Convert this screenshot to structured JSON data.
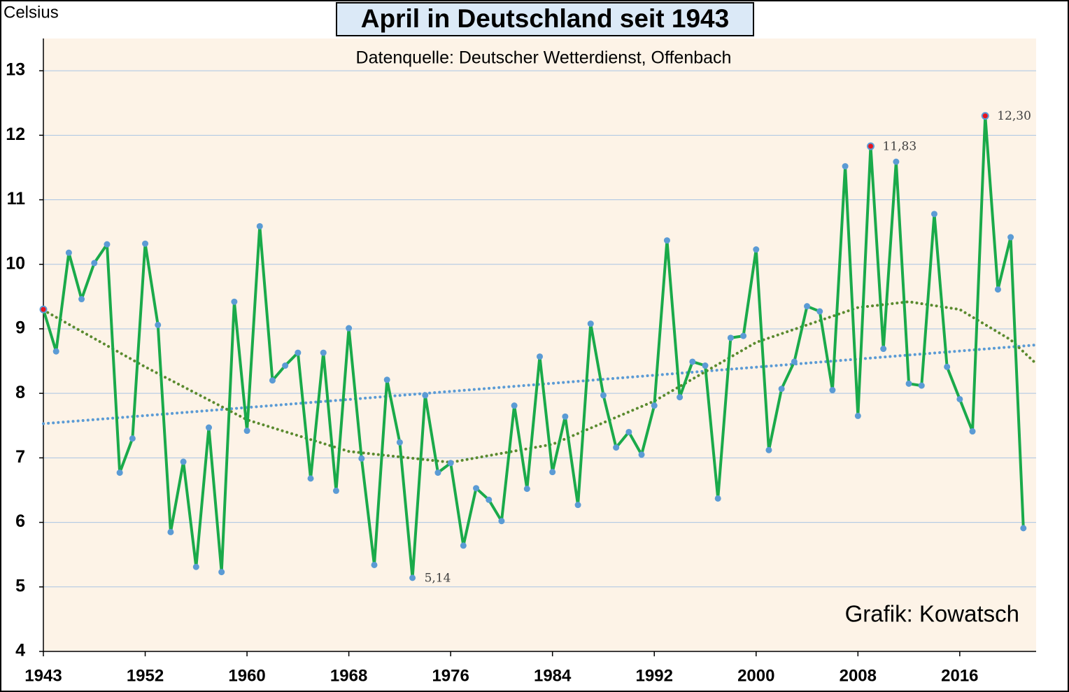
{
  "chart_data": {
    "type": "line",
    "title": "April in Deutschland seit 1943",
    "subtitle": "Datenquelle: Deutscher Wetterdienst, Offenbach",
    "y_label": "Celsius",
    "credit": "Grafik: Kowatsch",
    "categories": [
      "1943",
      null,
      null,
      null,
      null,
      null,
      null,
      null,
      "1952",
      null,
      null,
      null,
      null,
      null,
      null,
      null,
      "1960",
      null,
      null,
      null,
      null,
      null,
      null,
      null,
      "1968",
      null,
      null,
      null,
      null,
      null,
      null,
      null,
      "1976",
      null,
      null,
      null,
      null,
      null,
      null,
      null,
      "1984",
      null,
      null,
      null,
      null,
      null,
      null,
      null,
      "1992",
      null,
      null,
      null,
      null,
      null,
      null,
      null,
      "2000",
      null,
      null,
      null,
      null,
      null,
      null,
      null,
      "2008",
      null,
      null,
      null,
      null,
      null,
      null,
      null,
      "2016",
      null,
      null,
      null,
      null,
      null
    ],
    "series": [
      {
        "color": "#1aaa4a",
        "marker_color": "#5b9bd5",
        "values": [
          9.3,
          8.65,
          10.18,
          9.46,
          10.02,
          10.31,
          6.77,
          7.3,
          10.32,
          9.06,
          5.85,
          6.94,
          5.31,
          7.47,
          5.23,
          9.42,
          7.42,
          10.59,
          8.2,
          8.43,
          8.63,
          6.68,
          8.63,
          6.49,
          9.01,
          6.99,
          5.34,
          8.21,
          7.24,
          5.14,
          7.97,
          6.77,
          6.92,
          5.64,
          6.53,
          6.35,
          6.02,
          7.81,
          6.52,
          8.57,
          6.78,
          7.64,
          6.27,
          9.08,
          7.97,
          7.16,
          7.4,
          7.05,
          7.81,
          10.37,
          7.94,
          8.49,
          8.43,
          6.37,
          8.86,
          8.89,
          10.23,
          7.12,
          8.07,
          8.49,
          9.35,
          9.27,
          8.05,
          11.52,
          7.65,
          11.83,
          8.69,
          11.59,
          8.15,
          8.12,
          10.78,
          8.41,
          7.91,
          7.41,
          12.3,
          9.61,
          10.42,
          5.91
        ],
        "value_labels": [
          null,
          null,
          null,
          null,
          null,
          null,
          null,
          null,
          null,
          null,
          null,
          null,
          null,
          null,
          null,
          null,
          null,
          null,
          null,
          null,
          null,
          null,
          null,
          null,
          null,
          null,
          null,
          null,
          null,
          "5,14",
          null,
          null,
          null,
          null,
          null,
          null,
          null,
          null,
          null,
          null,
          null,
          null,
          null,
          null,
          null,
          null,
          null,
          null,
          null,
          null,
          null,
          null,
          null,
          null,
          null,
          null,
          null,
          null,
          null,
          null,
          null,
          null,
          null,
          null,
          null,
          "11,83",
          null,
          null,
          null,
          null,
          null,
          null,
          null,
          null,
          "12,30",
          null,
          null,
          null
        ],
        "highlight": [
          0,
          65,
          74
        ],
        "highlight_color": "#e8141e"
      }
    ],
    "trends": [
      {
        "color": "#5b9bd5",
        "x": [
          0,
          78
        ],
        "values": [
          7.53,
          8.75
        ]
      },
      {
        "color": "#5a8a2e",
        "x": [
          0,
          8,
          16,
          24,
          32,
          40,
          48,
          56,
          64,
          68,
          72,
          76,
          78
        ],
        "values": [
          9.29,
          8.41,
          7.59,
          7.1,
          6.93,
          7.21,
          7.88,
          8.79,
          9.33,
          9.42,
          9.3,
          8.83,
          8.46
        ]
      }
    ],
    "ylim": [
      4,
      13.5
    ],
    "yticks": [
      4,
      5,
      6,
      7,
      8,
      9,
      10,
      11,
      12,
      13
    ],
    "grid": true,
    "plot_background": "#fdf3e7",
    "title_background": "#dbe9f7",
    "grid_color": "#a9c4e4"
  }
}
